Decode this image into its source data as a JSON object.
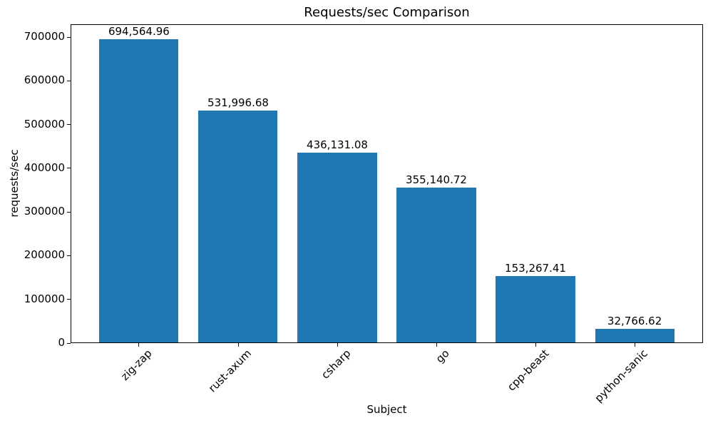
{
  "figure": {
    "background": "#ffffff"
  },
  "chart_data": {
    "type": "bar",
    "title": "Requests/sec Comparison",
    "xlabel": "Subject",
    "ylabel": "requests/sec",
    "categories": [
      "zig-zap",
      "rust-axum",
      "csharp",
      "go",
      "cpp-beast",
      "python-sanic"
    ],
    "values": [
      694564.96,
      531996.68,
      436131.08,
      355140.72,
      153267.41,
      32766.62
    ],
    "bar_value_labels": [
      "694,564.96",
      "531,996.68",
      "436,131.08",
      "355,140.72",
      "153,267.41",
      "32,766.62"
    ],
    "ytick_values": [
      0,
      100000,
      200000,
      300000,
      400000,
      500000,
      600000,
      700000
    ],
    "ytick_labels": [
      "0",
      "100000",
      "200000",
      "300000",
      "400000",
      "500000",
      "600000",
      "700000"
    ],
    "ylim": [
      0,
      729293
    ],
    "bar_color": "#1f77b4",
    "axis_color": "#000000",
    "text_color": "#000000",
    "grid": false,
    "legend": "none",
    "x_tick_rotation_deg": 45
  }
}
